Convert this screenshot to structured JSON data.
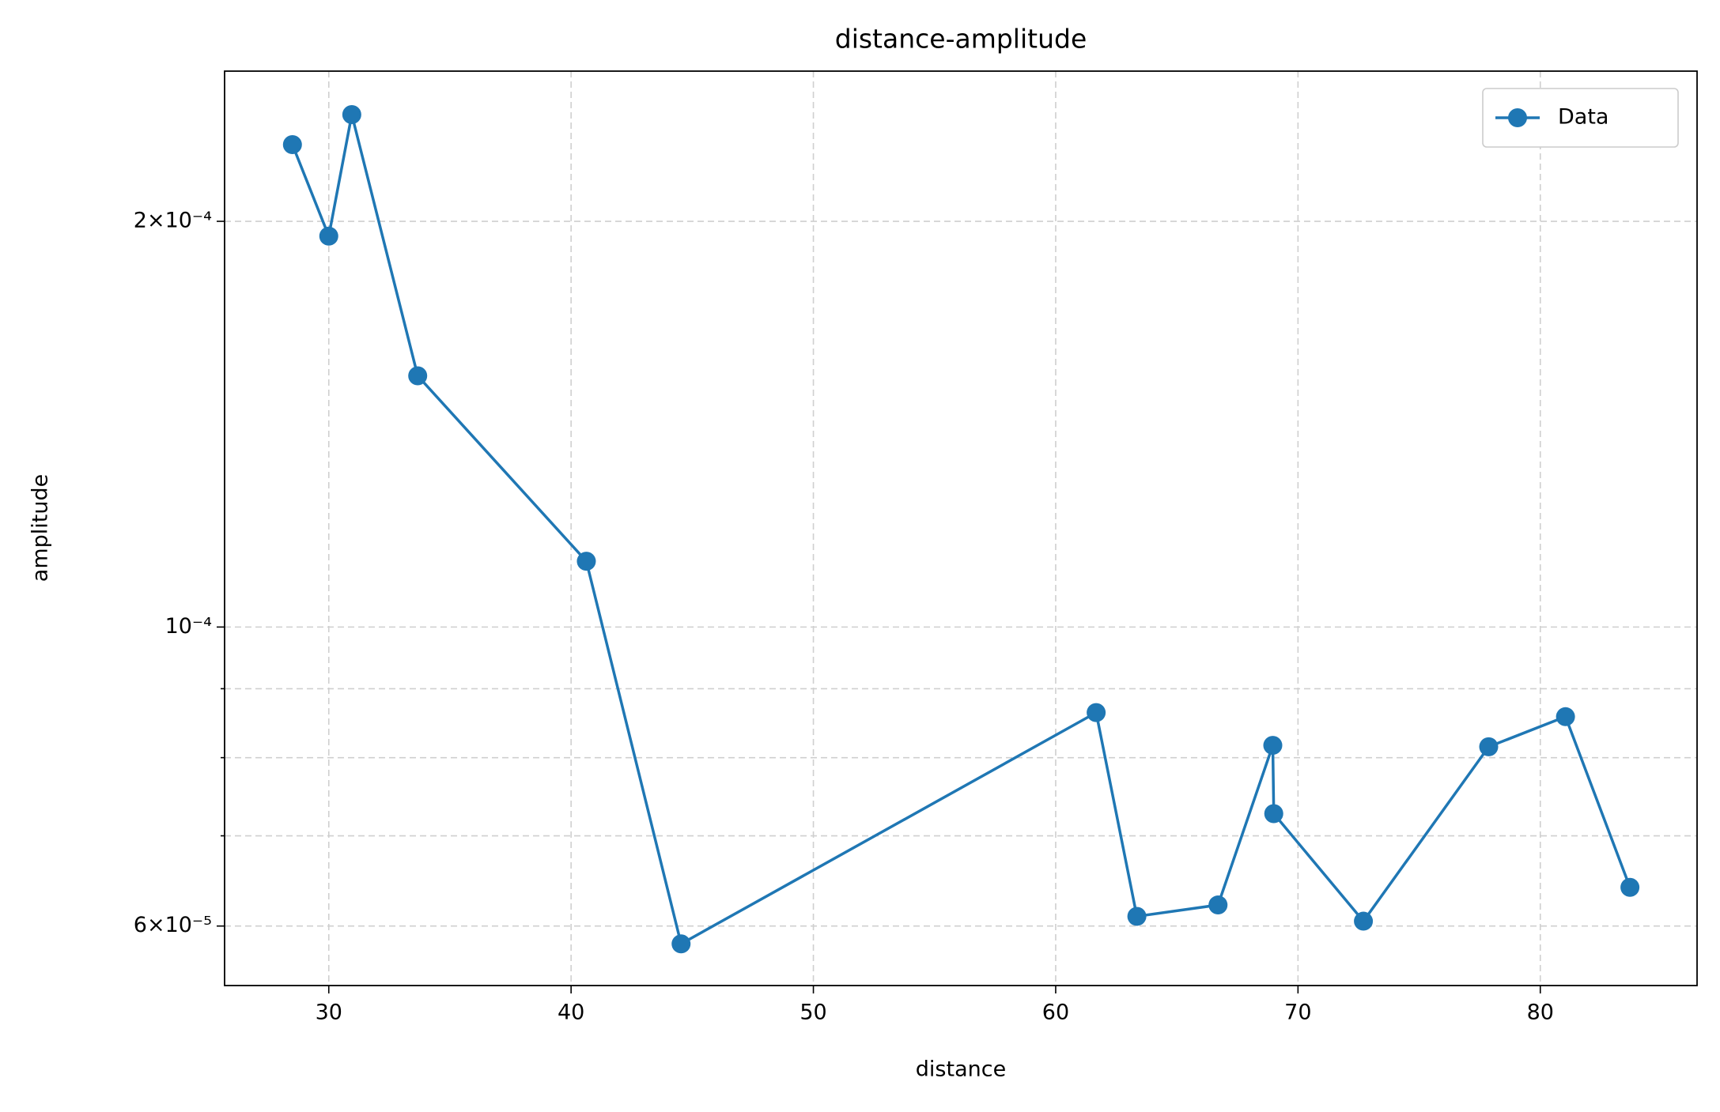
{
  "chart_data": {
    "type": "line",
    "title": "distance-amplitude",
    "xlabel": "distance",
    "ylabel": "amplitude",
    "x": [
      28.5,
      30.0,
      30.95,
      33.67,
      40.63,
      44.54,
      61.67,
      63.35,
      66.7,
      68.96,
      69.0,
      72.7,
      77.87,
      81.04,
      83.7
    ],
    "series": [
      {
        "name": "Data",
        "color": "#1f77b4",
        "values": [
          0.000228,
          0.000195,
          0.00024,
          0.0001536,
          0.0001119,
          5.82e-05,
          8.64e-05,
          6.1e-05,
          6.22e-05,
          8.17e-05,
          7.27e-05,
          6.05e-05,
          8.15e-05,
          8.58e-05,
          6.41e-05
        ]
      }
    ],
    "xlim": [
      25.7,
      86.47
    ],
    "xticks": [
      30,
      40,
      50,
      60,
      70,
      80
    ],
    "ylim": [
      5.42e-05,
      0.0002585
    ],
    "yscale": "log",
    "yticks": [
      {
        "value": 6e-05,
        "label": "6×10⁻⁵"
      },
      {
        "value": 0.0001,
        "label": "10⁻⁴"
      },
      {
        "value": 0.0002,
        "label": "2×10⁻⁴"
      }
    ],
    "yminorticks": [
      7e-05,
      8e-05,
      9e-05
    ],
    "grid": true,
    "legend": "upper right"
  }
}
